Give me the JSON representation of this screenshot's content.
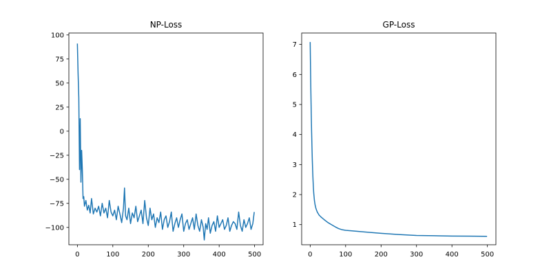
{
  "chart_data": [
    {
      "type": "line",
      "title": "NP-Loss",
      "xlabel": "",
      "ylabel": "",
      "xlim": [
        -24,
        524
      ],
      "ylim": [
        -118,
        102
      ],
      "xticks": [
        0,
        100,
        200,
        300,
        400,
        500
      ],
      "xtick_labels": [
        "0",
        "100",
        "200",
        "300",
        "400",
        "500"
      ],
      "yticks": [
        100,
        75,
        50,
        25,
        0,
        -25,
        -50,
        -75,
        -100
      ],
      "ytick_labels": [
        "100",
        "75",
        "50",
        "25",
        "0",
        "−25",
        "−50",
        "−75",
        "−100"
      ],
      "series": [
        {
          "color": "#1f77b4",
          "x": [
            0,
            2,
            4,
            6,
            8,
            10,
            12,
            14,
            16,
            18,
            20,
            24,
            28,
            32,
            36,
            40,
            45,
            50,
            55,
            60,
            65,
            70,
            75,
            80,
            85,
            90,
            95,
            100,
            105,
            110,
            115,
            120,
            125,
            130,
            133,
            136,
            140,
            145,
            150,
            155,
            160,
            165,
            170,
            175,
            180,
            185,
            190,
            195,
            200,
            205,
            210,
            215,
            220,
            225,
            230,
            235,
            240,
            245,
            250,
            255,
            260,
            265,
            270,
            275,
            280,
            285,
            290,
            295,
            300,
            305,
            310,
            315,
            320,
            325,
            330,
            335,
            340,
            345,
            350,
            355,
            358,
            362,
            366,
            370,
            375,
            380,
            385,
            390,
            395,
            400,
            405,
            410,
            415,
            420,
            425,
            430,
            435,
            440,
            445,
            450,
            455,
            460,
            465,
            470,
            475,
            480,
            485,
            490,
            495,
            499
          ],
          "y": [
            91,
            60,
            35,
            -40,
            13,
            -53,
            -20,
            -40,
            -70,
            -68,
            -78,
            -72,
            -82,
            -77,
            -85,
            -70,
            -86,
            -80,
            -84,
            -78,
            -88,
            -75,
            -85,
            -80,
            -90,
            -72,
            -84,
            -88,
            -82,
            -92,
            -78,
            -86,
            -95,
            -80,
            -59,
            -88,
            -92,
            -80,
            -96,
            -85,
            -90,
            -78,
            -94,
            -88,
            -82,
            -96,
            -72,
            -90,
            -98,
            -80,
            -92,
            -86,
            -100,
            -90,
            -95,
            -84,
            -102,
            -92,
            -88,
            -100,
            -94,
            -84,
            -104,
            -96,
            -90,
            -100,
            -92,
            -86,
            -104,
            -96,
            -92,
            -102,
            -96,
            -90,
            -102,
            -86,
            -98,
            -104,
            -92,
            -100,
            -113,
            -96,
            -102,
            -90,
            -106,
            -98,
            -94,
            -104,
            -88,
            -100,
            -96,
            -92,
            -102,
            -98,
            -90,
            -104,
            -98,
            -94,
            -96,
            -102,
            -84,
            -98,
            -104,
            -92,
            -100,
            -96,
            -90,
            -102,
            -96,
            -84
          ]
        }
      ]
    },
    {
      "type": "line",
      "title": "GP-Loss",
      "xlabel": "",
      "ylabel": "",
      "xlim": [
        -24,
        524
      ],
      "ylim": [
        0.33,
        7.38
      ],
      "xticks": [
        0,
        100,
        200,
        300,
        400,
        500
      ],
      "xtick_labels": [
        "0",
        "100",
        "200",
        "300",
        "400",
        "500"
      ],
      "yticks": [
        1,
        2,
        3,
        4,
        5,
        6,
        7
      ],
      "ytick_labels": [
        "1",
        "2",
        "3",
        "4",
        "5",
        "6",
        "7"
      ],
      "series": [
        {
          "color": "#1f77b4",
          "x": [
            0,
            1,
            2,
            3,
            4,
            5,
            6,
            7,
            8,
            9,
            10,
            12,
            14,
            16,
            18,
            20,
            25,
            30,
            35,
            40,
            50,
            60,
            70,
            80,
            90,
            100,
            120,
            150,
            200,
            250,
            300,
            350,
            400,
            450,
            499
          ],
          "y": [
            7.08,
            6.2,
            5.4,
            4.7,
            4.1,
            3.6,
            3.15,
            2.8,
            2.5,
            2.25,
            2.05,
            1.8,
            1.65,
            1.55,
            1.48,
            1.42,
            1.32,
            1.26,
            1.21,
            1.16,
            1.07,
            1.0,
            0.93,
            0.87,
            0.83,
            0.81,
            0.79,
            0.76,
            0.71,
            0.67,
            0.64,
            0.63,
            0.62,
            0.615,
            0.61
          ]
        }
      ]
    }
  ]
}
